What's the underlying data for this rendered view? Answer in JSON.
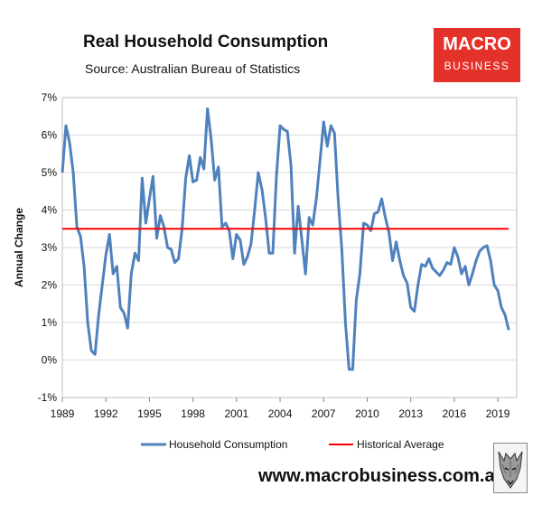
{
  "header": {
    "title": "Real Household Consumption",
    "source": "Source: Australian Bureau of Statistics"
  },
  "brand": {
    "line1": "MACRO",
    "line2": "BUSINESS",
    "color": "#e4312a"
  },
  "footer": {
    "url": "www.macrobusiness.com.au",
    "logo_icon": "wolf-icon"
  },
  "chart_data": {
    "type": "line",
    "ylabel": "Annual Change",
    "xlabel": "",
    "ylim": [
      -1,
      7
    ],
    "xlim": [
      1989,
      2020.3
    ],
    "yticks": [
      "-1%",
      "0%",
      "1%",
      "2%",
      "3%",
      "4%",
      "5%",
      "6%",
      "7%"
    ],
    "ytick_values": [
      -1,
      0,
      1,
      2,
      3,
      4,
      5,
      6,
      7
    ],
    "xticks": [
      "1989",
      "1992",
      "1995",
      "1998",
      "2001",
      "2004",
      "2007",
      "2010",
      "2013",
      "2016",
      "2019"
    ],
    "xtick_values": [
      1989,
      1992,
      1995,
      1998,
      2001,
      2004,
      2007,
      2010,
      2013,
      2016,
      2019
    ],
    "grid": true,
    "legend_position": "bottom",
    "series": [
      {
        "name": "Household Consumption",
        "color": "#4f81bd",
        "x": [
          1989.0,
          1989.25,
          1989.5,
          1989.75,
          1990.0,
          1990.25,
          1990.5,
          1990.75,
          1991.0,
          1991.25,
          1991.5,
          1991.75,
          1992.0,
          1992.25,
          1992.5,
          1992.75,
          1993.0,
          1993.25,
          1993.5,
          1993.75,
          1994.0,
          1994.25,
          1994.5,
          1994.75,
          1995.0,
          1995.25,
          1995.5,
          1995.75,
          1996.0,
          1996.25,
          1996.5,
          1996.75,
          1997.0,
          1997.25,
          1997.5,
          1997.75,
          1998.0,
          1998.25,
          1998.5,
          1998.75,
          1999.0,
          1999.25,
          1999.5,
          1999.75,
          2000.0,
          2000.25,
          2000.5,
          2000.75,
          2001.0,
          2001.25,
          2001.5,
          2001.75,
          2002.0,
          2002.25,
          2002.5,
          2002.75,
          2003.0,
          2003.25,
          2003.5,
          2003.75,
          2004.0,
          2004.25,
          2004.5,
          2004.75,
          2005.0,
          2005.25,
          2005.5,
          2005.75,
          2006.0,
          2006.25,
          2006.5,
          2006.75,
          2007.0,
          2007.25,
          2007.5,
          2007.75,
          2008.0,
          2008.25,
          2008.5,
          2008.75,
          2009.0,
          2009.25,
          2009.5,
          2009.75,
          2010.0,
          2010.25,
          2010.5,
          2010.75,
          2011.0,
          2011.25,
          2011.5,
          2011.75,
          2012.0,
          2012.25,
          2012.5,
          2012.75,
          2013.0,
          2013.25,
          2013.5,
          2013.75,
          2014.0,
          2014.25,
          2014.5,
          2014.75,
          2015.0,
          2015.25,
          2015.5,
          2015.75,
          2016.0,
          2016.25,
          2016.5,
          2016.75,
          2017.0,
          2017.25,
          2017.5,
          2017.75,
          2018.0,
          2018.25,
          2018.5,
          2018.75,
          2019.0,
          2019.25,
          2019.5,
          2019.75
        ],
        "values": [
          5.0,
          6.25,
          5.8,
          5.0,
          3.55,
          3.3,
          2.5,
          1.0,
          0.25,
          0.15,
          1.2,
          2.0,
          2.8,
          3.35,
          2.3,
          2.5,
          1.4,
          1.25,
          0.85,
          2.3,
          2.85,
          2.65,
          4.85,
          3.65,
          4.3,
          4.9,
          3.25,
          3.85,
          3.55,
          3.0,
          2.95,
          2.6,
          2.7,
          3.5,
          4.85,
          5.45,
          4.75,
          4.8,
          5.4,
          5.1,
          6.7,
          5.9,
          4.8,
          5.15,
          3.55,
          3.65,
          3.45,
          2.7,
          3.35,
          3.2,
          2.55,
          2.75,
          3.1,
          4.0,
          5.0,
          4.55,
          3.8,
          2.85,
          2.85,
          4.9,
          6.25,
          6.15,
          6.1,
          5.2,
          2.85,
          4.1,
          3.2,
          2.3,
          3.8,
          3.6,
          4.3,
          5.3,
          6.35,
          5.7,
          6.25,
          6.05,
          4.3,
          2.95,
          1.0,
          -0.25,
          -0.25,
          1.6,
          2.3,
          3.65,
          3.6,
          3.45,
          3.9,
          3.95,
          4.3,
          3.8,
          3.4,
          2.65,
          3.15,
          2.65,
          2.25,
          2.05,
          1.4,
          1.3,
          2.0,
          2.55,
          2.5,
          2.7,
          2.45,
          2.35,
          2.25,
          2.4,
          2.6,
          2.55,
          3.0,
          2.75,
          2.3,
          2.5,
          2.0,
          2.3,
          2.65,
          2.9,
          3.0,
          3.05,
          2.65,
          2.0,
          1.85,
          1.4,
          1.2,
          0.8
        ]
      },
      {
        "name": "Historical Average",
        "color": "#ff0000",
        "x": [
          1989.0,
          2019.75
        ],
        "values": [
          3.5,
          3.5
        ]
      }
    ]
  }
}
